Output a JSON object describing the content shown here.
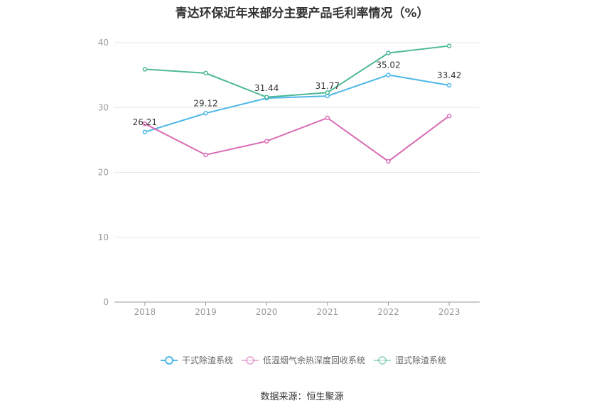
{
  "source_note": "数据来源：恒生聚源",
  "chart_data": {
    "type": "line",
    "title": "青达环保近年来部分主要产品毛利率情况（%）",
    "categories": [
      "2018",
      "2019",
      "2020",
      "2021",
      "2022",
      "2023"
    ],
    "ylim": [
      0,
      40
    ],
    "yticks": [
      0,
      10,
      20,
      30,
      40
    ],
    "grid": true,
    "legend_position": "bottom",
    "series": [
      {
        "name": "干式除渣系统",
        "color": "#4db8e8",
        "values": [
          26.21,
          29.12,
          31.44,
          31.77,
          35.02,
          33.42
        ],
        "labels": [
          "26.21",
          "29.12",
          "31.44",
          "31.77",
          "35.02",
          "33.42"
        ]
      },
      {
        "name": "低温烟气余热深度回收系统",
        "color": "#d96cb5",
        "values": [
          27.5,
          22.7,
          24.8,
          28.4,
          21.7,
          28.7
        ],
        "labels": []
      },
      {
        "name": "湿式除渣系统",
        "color": "#4fb89a",
        "values": [
          35.9,
          35.3,
          31.6,
          32.3,
          38.4,
          39.5
        ],
        "labels": []
      }
    ]
  }
}
